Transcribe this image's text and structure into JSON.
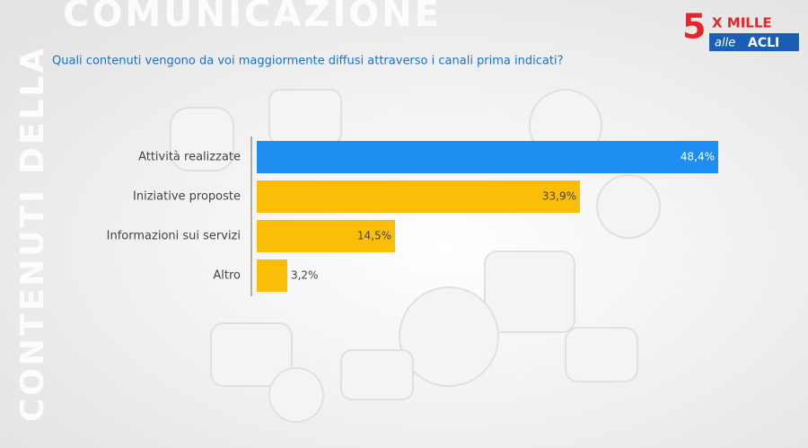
{
  "slide": {
    "side_title": "CONTENUTI DELLA",
    "top_title": "COMUNICAZIONE",
    "logo": {
      "number": "5",
      "mille": "X MILLE",
      "alle": "alle",
      "acli": "ACLI"
    }
  },
  "chart_data": {
    "type": "barh",
    "title": "Quali contenuti vengono da voi maggiormente diffusi attraverso i canali prima indicati?",
    "categories": [
      "Attività realizzate",
      "Iniziative proposte",
      "Informazioni sui servizi",
      "Altro"
    ],
    "values": [
      48.4,
      33.9,
      14.5,
      3.2
    ],
    "value_labels": [
      "48,4%",
      "33,9%",
      "14,5%",
      "3,2%"
    ],
    "colors": [
      "#1e8ff0",
      "#fbbd05",
      "#fbbd05",
      "#fbbd05"
    ]
  }
}
